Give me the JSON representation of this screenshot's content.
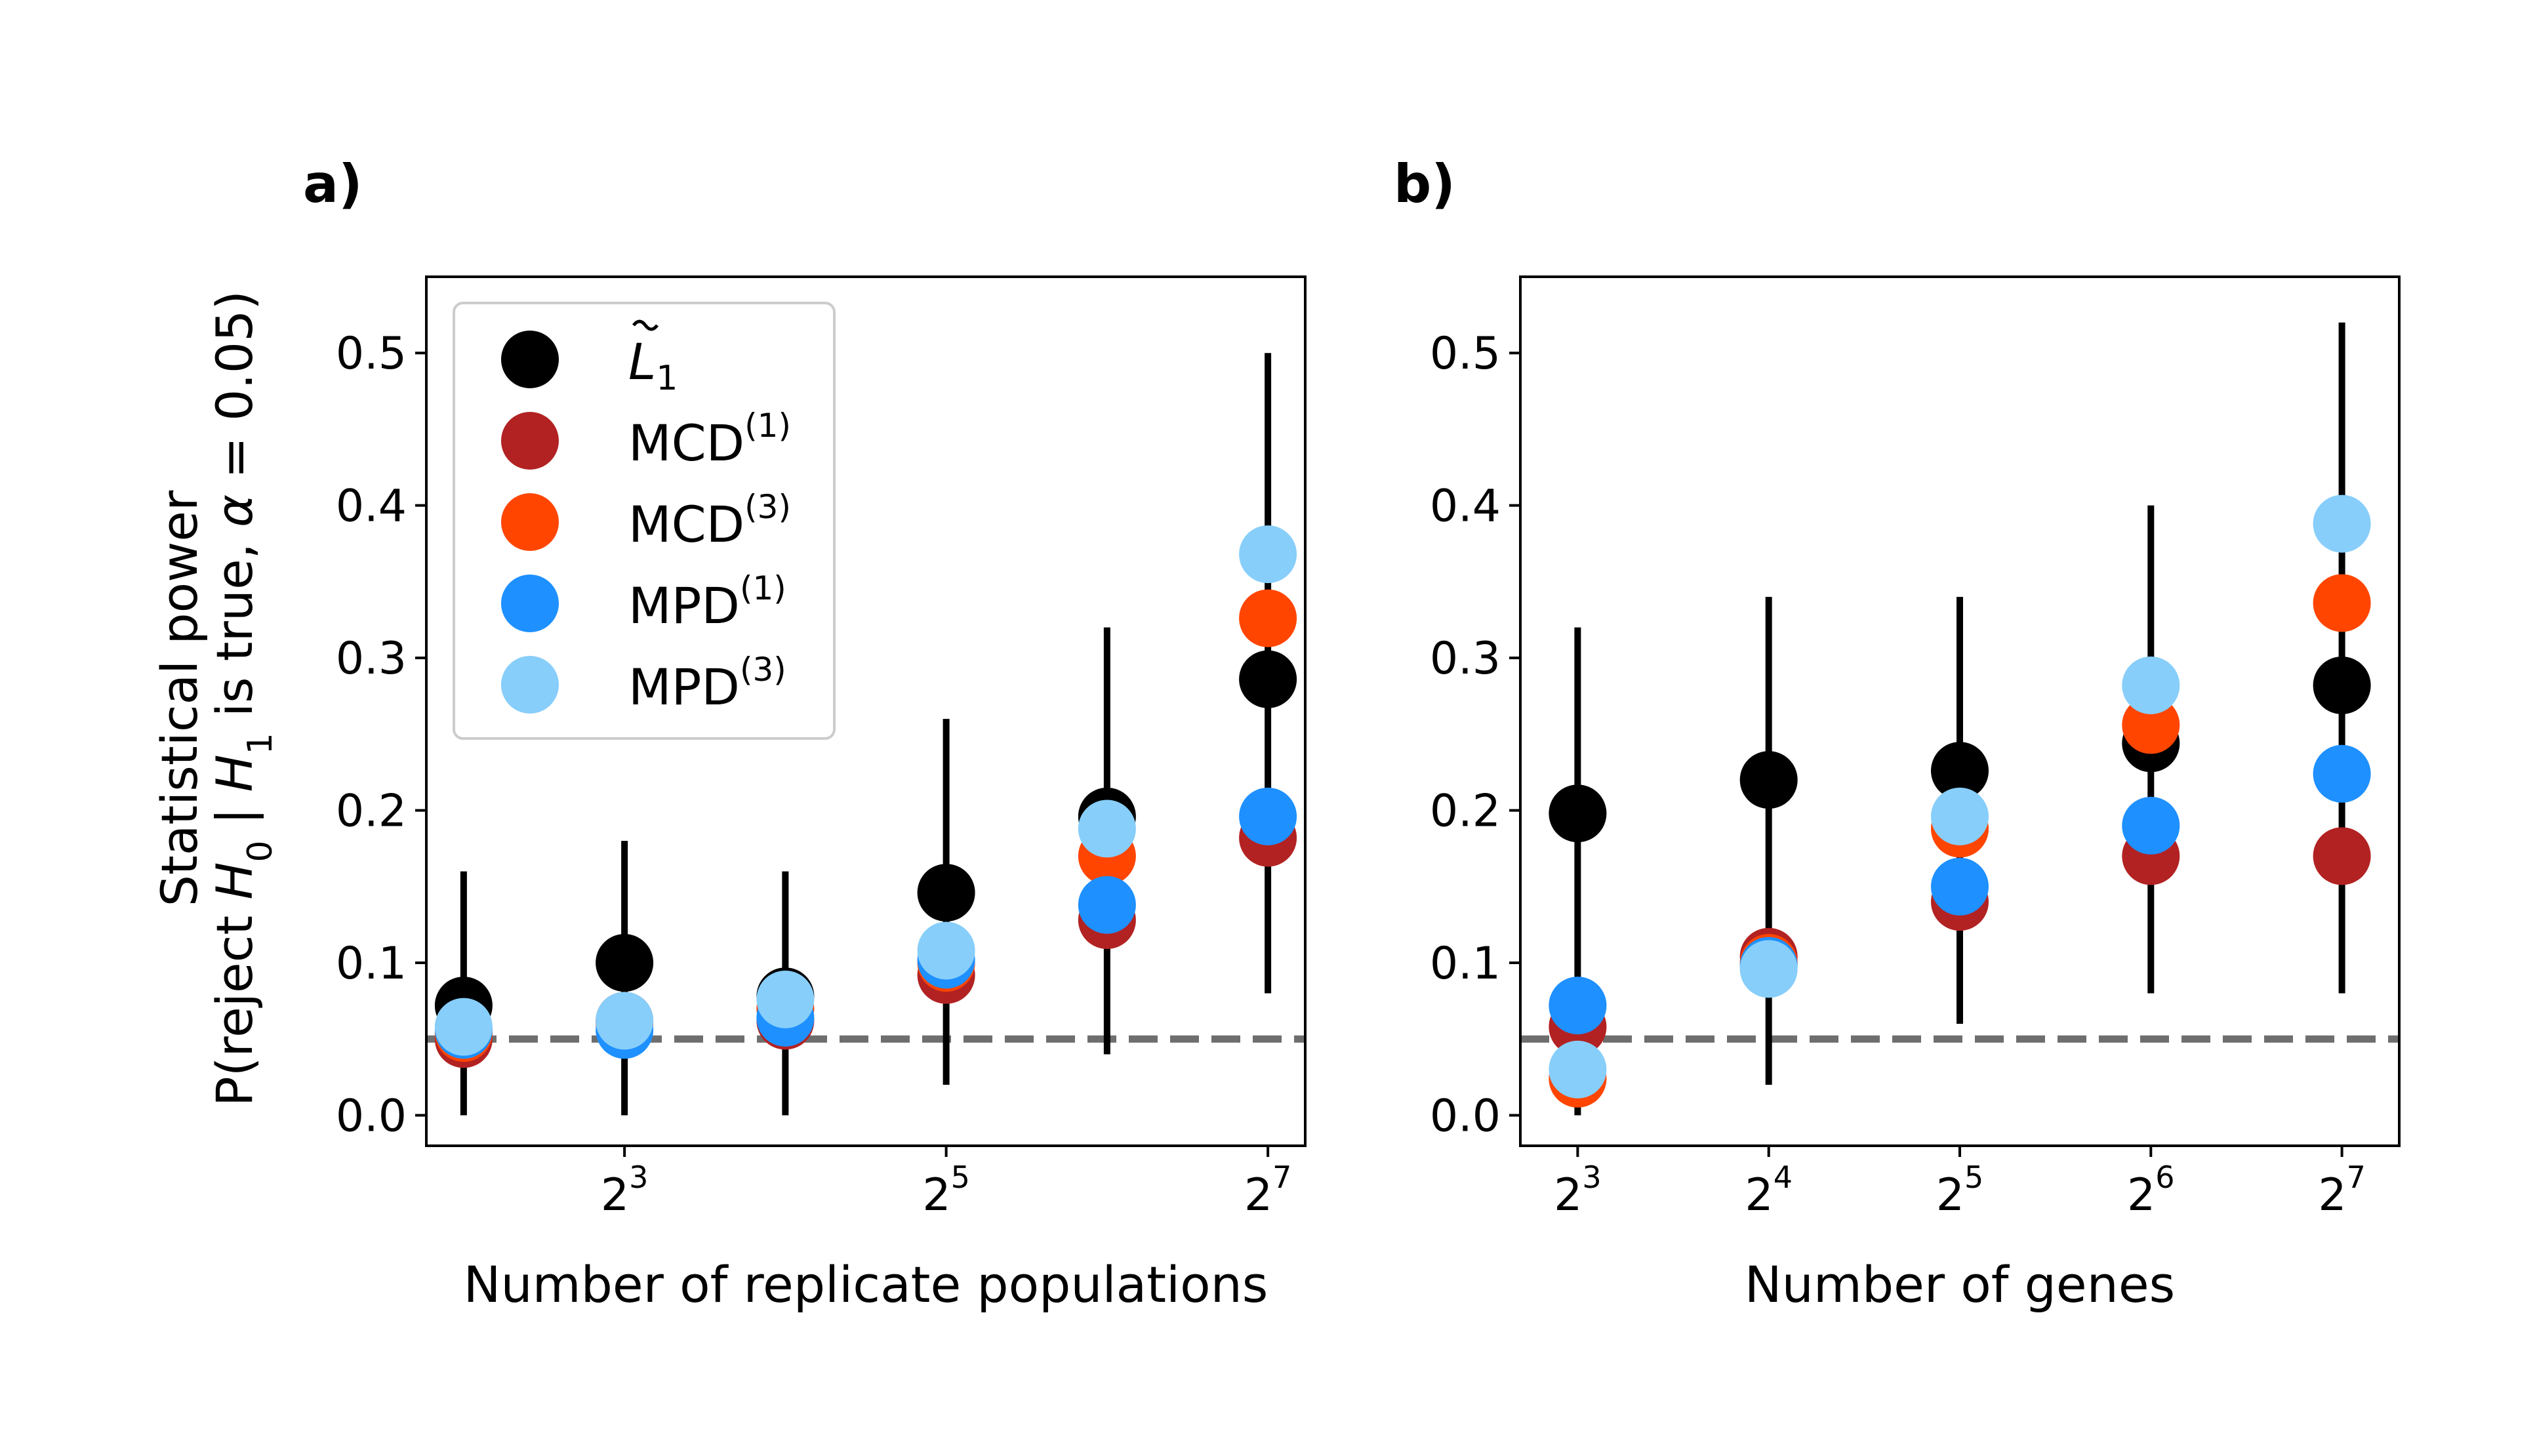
{
  "ylabel": {
    "line1": "Statistical power",
    "line2_prefix": "P(reject ",
    "h0_var": "H",
    "h0_sub": "0",
    "line2_mid": " | ",
    "h1_var": "H",
    "h1_sub": "1",
    "line2_mid2": " is true, ",
    "alpha_var": "α",
    "line2_suffix": " = 0.05)"
  },
  "legend": [
    {
      "id": "L1",
      "base": "L",
      "sub": "1",
      "tilde": true,
      "sup": "",
      "color": "#000000"
    },
    {
      "id": "MCD1",
      "base": "MCD",
      "sub": "",
      "tilde": false,
      "sup": "(1)",
      "color": "#b22222"
    },
    {
      "id": "MCD3",
      "base": "MCD",
      "sub": "",
      "tilde": false,
      "sup": "(3)",
      "color": "#ff4500"
    },
    {
      "id": "MPD1",
      "base": "MPD",
      "sub": "",
      "tilde": false,
      "sup": "(1)",
      "color": "#1e90ff"
    },
    {
      "id": "MPD3",
      "base": "MPD",
      "sub": "",
      "tilde": false,
      "sup": "(3)",
      "color": "#87cefa"
    }
  ],
  "chart_data": [
    {
      "type": "scatter",
      "panel_label": "a)",
      "xlabel": "Number of replicate populations",
      "x_scale": "log2",
      "x": [
        4,
        8,
        16,
        32,
        64,
        128
      ],
      "x_ticks": [
        {
          "base": "2",
          "exp": "3",
          "value": 8
        },
        {
          "base": "2",
          "exp": "5",
          "value": 32
        },
        {
          "base": "2",
          "exp": "7",
          "value": 128
        }
      ],
      "ylim": [
        -0.02,
        0.55
      ],
      "y_ticks": [
        {
          "label": "0.0",
          "value": 0.0
        },
        {
          "label": "0.1",
          "value": 0.1
        },
        {
          "label": "0.2",
          "value": 0.2
        },
        {
          "label": "0.3",
          "value": 0.3
        },
        {
          "label": "0.4",
          "value": 0.4
        },
        {
          "label": "0.5",
          "value": 0.5
        }
      ],
      "reference_line": 0.05,
      "legend_position": "upper-left",
      "error_bars": [
        {
          "lo": 0.0,
          "hi": 0.16
        },
        {
          "lo": 0.0,
          "hi": 0.18
        },
        {
          "lo": 0.0,
          "hi": 0.16
        },
        {
          "lo": 0.02,
          "hi": 0.26
        },
        {
          "lo": 0.04,
          "hi": 0.32
        },
        {
          "lo": 0.08,
          "hi": 0.5
        }
      ],
      "series": [
        {
          "legend_id": "L1",
          "color": "#000000",
          "values": [
            0.072,
            0.1,
            0.078,
            0.146,
            0.196,
            0.286
          ]
        },
        {
          "legend_id": "MCD1",
          "color": "#b22222",
          "values": [
            0.05,
            0.062,
            0.062,
            0.092,
            0.128,
            0.182
          ]
        },
        {
          "legend_id": "MCD3",
          "color": "#ff4500",
          "values": [
            0.054,
            0.06,
            0.07,
            0.1,
            0.17,
            0.326
          ]
        },
        {
          "legend_id": "MPD1",
          "color": "#1e90ff",
          "values": [
            0.056,
            0.056,
            0.064,
            0.102,
            0.138,
            0.196
          ]
        },
        {
          "legend_id": "MPD3",
          "color": "#87cefa",
          "values": [
            0.058,
            0.062,
            0.076,
            0.108,
            0.188,
            0.368
          ]
        }
      ]
    },
    {
      "type": "scatter",
      "panel_label": "b)",
      "xlabel": "Number of genes",
      "x_scale": "log2",
      "x": [
        8,
        16,
        32,
        64,
        128
      ],
      "x_ticks": [
        {
          "base": "2",
          "exp": "3",
          "value": 8
        },
        {
          "base": "2",
          "exp": "4",
          "value": 16
        },
        {
          "base": "2",
          "exp": "5",
          "value": 32
        },
        {
          "base": "2",
          "exp": "6",
          "value": 64
        },
        {
          "base": "2",
          "exp": "7",
          "value": 128
        }
      ],
      "ylim": [
        -0.02,
        0.55
      ],
      "y_ticks": [
        {
          "label": "0.0",
          "value": 0.0
        },
        {
          "label": "0.1",
          "value": 0.1
        },
        {
          "label": "0.2",
          "value": 0.2
        },
        {
          "label": "0.3",
          "value": 0.3
        },
        {
          "label": "0.4",
          "value": 0.4
        },
        {
          "label": "0.5",
          "value": 0.5
        }
      ],
      "reference_line": 0.05,
      "error_bars": [
        {
          "lo": 0.0,
          "hi": 0.32
        },
        {
          "lo": 0.02,
          "hi": 0.34
        },
        {
          "lo": 0.06,
          "hi": 0.34
        },
        {
          "lo": 0.08,
          "hi": 0.4
        },
        {
          "lo": 0.08,
          "hi": 0.52
        }
      ],
      "series": [
        {
          "legend_id": "L1",
          "color": "#000000",
          "values": [
            0.198,
            0.22,
            0.226,
            0.244,
            0.282
          ]
        },
        {
          "legend_id": "MCD1",
          "color": "#b22222",
          "values": [
            0.058,
            0.104,
            0.14,
            0.17,
            0.17
          ]
        },
        {
          "legend_id": "MCD3",
          "color": "#ff4500",
          "values": [
            0.024,
            0.1,
            0.188,
            0.256,
            0.336
          ]
        },
        {
          "legend_id": "MPD1",
          "color": "#1e90ff",
          "values": [
            0.072,
            0.098,
            0.15,
            0.19,
            0.224
          ]
        },
        {
          "legend_id": "MPD3",
          "color": "#87cefa",
          "values": [
            0.03,
            0.096,
            0.196,
            0.282,
            0.388
          ]
        }
      ]
    }
  ]
}
